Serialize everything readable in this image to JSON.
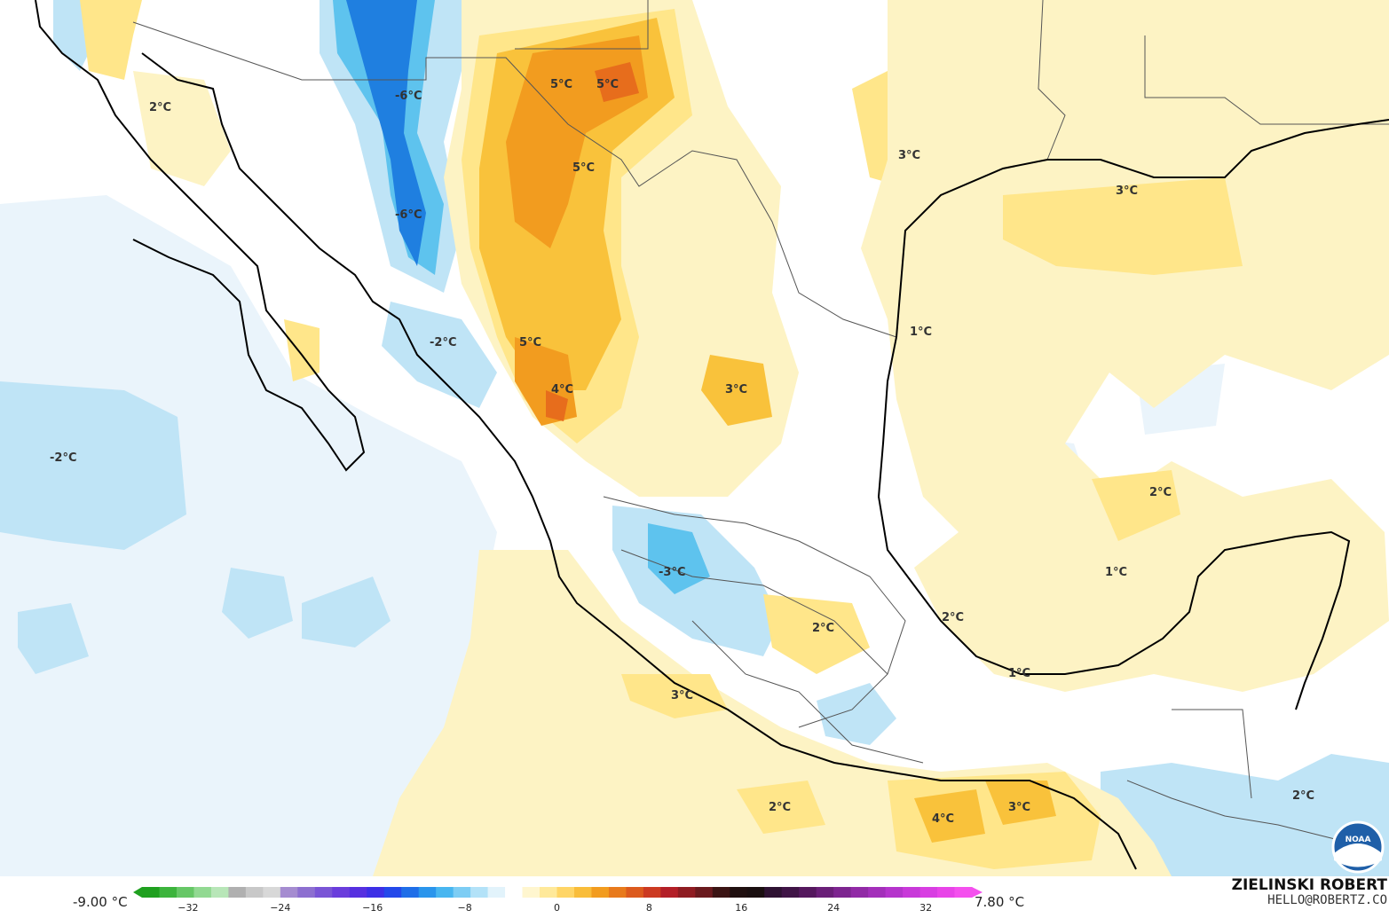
{
  "colorbar": {
    "min_label": "-9.00 °C",
    "max_label": "7.80 °C",
    "ticks": [
      "−32",
      "−24",
      "−16",
      "−8",
      "0",
      "8",
      "16",
      "24",
      "32"
    ],
    "range": [
      -36,
      36
    ]
  },
  "credit": {
    "name": "ZIELINSKI ROBERT",
    "email": "HELLO@ROBERTZ.CO"
  },
  "logo": {
    "text": "NOAA"
  },
  "contour_labels": [
    "-6°C",
    "-6°C",
    "5°C",
    "5°C",
    "5°C",
    "2°C",
    "3°C",
    "3°C",
    "1°C",
    "-2°C",
    "5°C",
    "4°C",
    "3°C",
    "-2°C",
    "2°C",
    "-3°C",
    "1°C",
    "2°C",
    "2°C",
    "1°C",
    "3°C",
    "2°C",
    "4°C",
    "3°C",
    "2°C"
  ],
  "colors": {
    "cold_light": "#eaf4fb",
    "cold_mid": "#bfe4f6",
    "cold_strong": "#5ec3ee",
    "cold_deep": "#1f7fe0",
    "warm_light": "#fdf3c4",
    "warm_mid": "#ffe68a",
    "warm_strong": "#f9c23b",
    "warm_deep": "#f29c1f",
    "warm_max": "#e76d1c"
  }
}
